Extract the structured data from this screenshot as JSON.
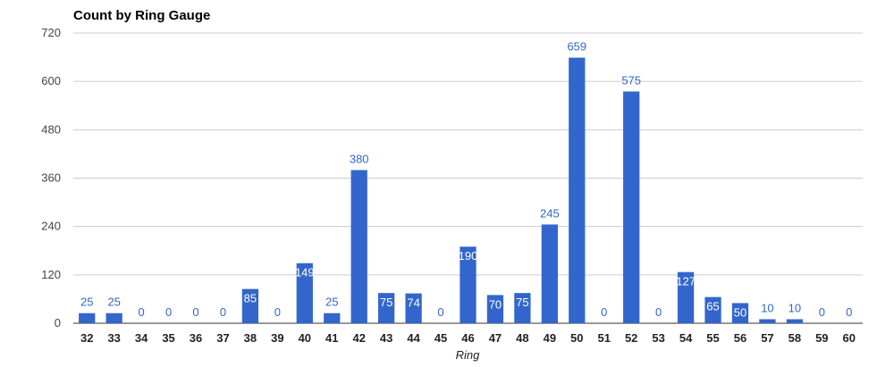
{
  "chart_data": {
    "type": "bar",
    "title": "Count by Ring Gauge",
    "xlabel": "Ring",
    "ylabel": "",
    "ylim": [
      0,
      720
    ],
    "yticks": [
      0,
      120,
      240,
      360,
      480,
      600,
      720
    ],
    "grid": true,
    "legend": "none",
    "bar_color": "#3366cc",
    "categories": [
      "32",
      "33",
      "34",
      "35",
      "36",
      "37",
      "38",
      "39",
      "40",
      "41",
      "42",
      "43",
      "44",
      "45",
      "46",
      "47",
      "48",
      "49",
      "50",
      "51",
      "52",
      "53",
      "54",
      "55",
      "56",
      "57",
      "58",
      "59",
      "60"
    ],
    "values": [
      25,
      25,
      0,
      0,
      0,
      0,
      85,
      0,
      149,
      25,
      380,
      75,
      74,
      0,
      190,
      70,
      75,
      245,
      659,
      0,
      575,
      0,
      127,
      65,
      50,
      10,
      10,
      0,
      0
    ]
  }
}
